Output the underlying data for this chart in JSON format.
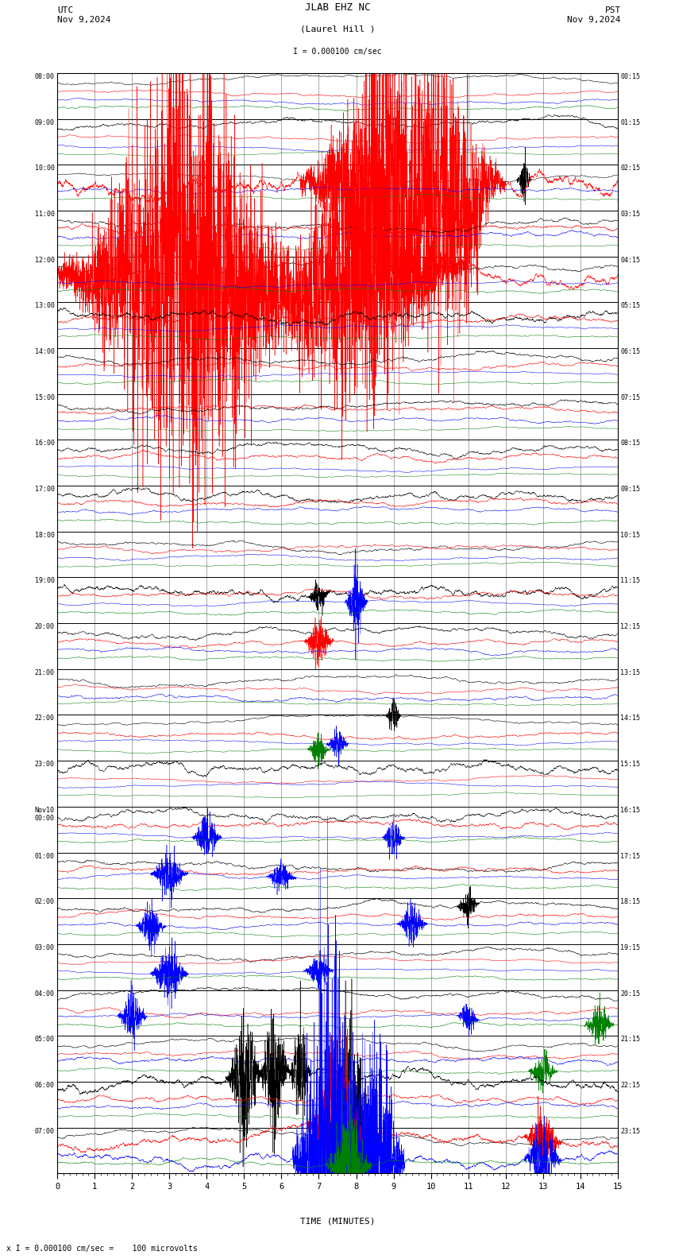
{
  "title_line1": "JLAB EHZ NC",
  "title_line2": "(Laurel Hill )",
  "scale_label": "I = 0.000100 cm/sec",
  "utc_label": "UTC\nNov 9,2024",
  "pst_label": "PST\nNov 9,2024",
  "footer_label": "x I = 0.000100 cm/sec =    100 microvolts",
  "xlabel": "TIME (MINUTES)",
  "left_times": [
    "08:00",
    "09:00",
    "10:00",
    "11:00",
    "12:00",
    "13:00",
    "14:00",
    "15:00",
    "16:00",
    "17:00",
    "18:00",
    "19:00",
    "20:00",
    "21:00",
    "22:00",
    "23:00",
    "Nov10\n00:00",
    "01:00",
    "02:00",
    "03:00",
    "04:00",
    "05:00",
    "06:00",
    "07:00"
  ],
  "right_times": [
    "00:15",
    "01:15",
    "02:15",
    "03:15",
    "04:15",
    "05:15",
    "06:15",
    "07:15",
    "08:15",
    "09:15",
    "10:15",
    "11:15",
    "12:15",
    "13:15",
    "14:15",
    "15:15",
    "16:15",
    "17:15",
    "18:15",
    "19:15",
    "20:15",
    "21:15",
    "22:15",
    "23:15"
  ],
  "n_rows": 24,
  "n_channels": 4,
  "channel_colors": [
    "black",
    "red",
    "blue",
    "green"
  ],
  "minutes": 15,
  "bg_color": "white",
  "grid_color": "#888888",
  "text_color": "black",
  "seed": 42
}
